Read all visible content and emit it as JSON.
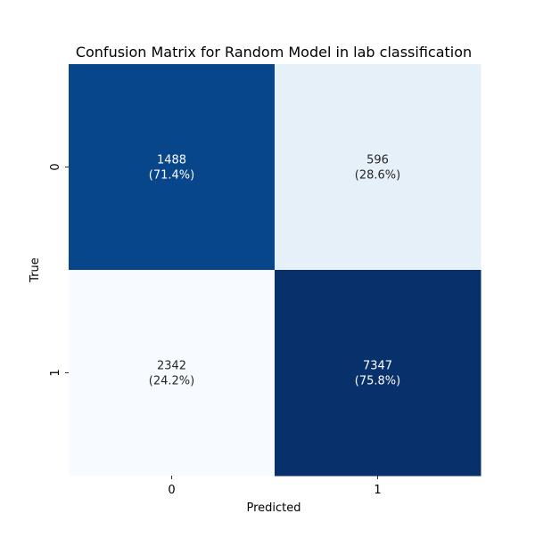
{
  "chart_data": {
    "type": "heatmap",
    "title": "Confusion Matrix for Random Model in lab classification",
    "xlabel": "Predicted",
    "ylabel": "True",
    "x_categories": [
      "0",
      "1"
    ],
    "y_categories": [
      "0",
      "1"
    ],
    "values": [
      [
        1488,
        596
      ],
      [
        2342,
        7347
      ]
    ],
    "row_percent_labels": [
      [
        "(71.4%)",
        "(28.6%)"
      ],
      [
        "(24.2%)",
        "(75.8%)"
      ]
    ],
    "colorscale": "Blues",
    "colorbar": false,
    "cell_colors": [
      [
        "#08468b",
        "#e6f0f9"
      ],
      [
        "#f7fbff",
        "#08306b"
      ]
    ],
    "cell_text_colors": [
      [
        "#ffffff",
        "#262626"
      ],
      [
        "#262626",
        "#ffffff"
      ]
    ]
  }
}
